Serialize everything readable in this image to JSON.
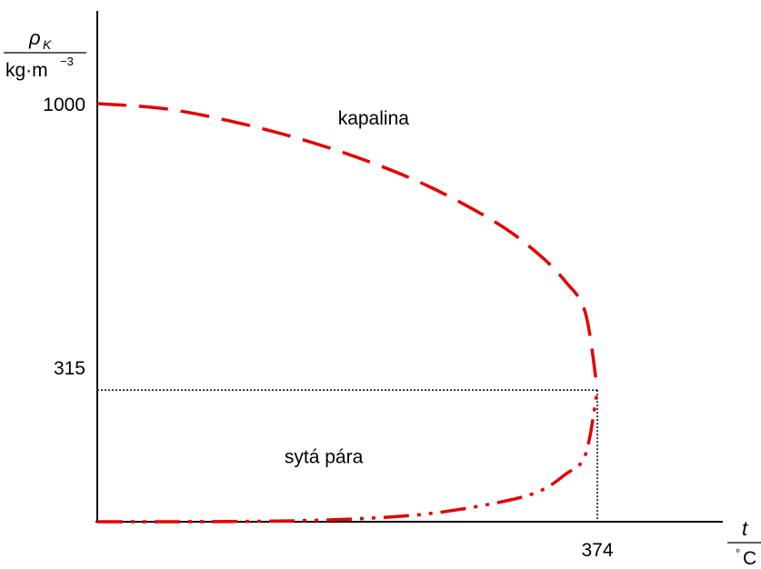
{
  "chart_data": {
    "type": "line",
    "ylabel": {
      "symbol": "ρ",
      "subscript": "K",
      "unit_base": "kg·m",
      "unit_exponent": "−3"
    },
    "xlabel": {
      "symbol": "t",
      "unit_degree": "°",
      "unit": "C"
    },
    "xlim": [
      0,
      420
    ],
    "ylim": [
      0,
      1100
    ],
    "y_ticks": [
      {
        "value": 1000,
        "label": "1000"
      },
      {
        "value": 315,
        "label": "315"
      }
    ],
    "x_ticks": [
      {
        "value": 374,
        "label": "374"
      }
    ],
    "critical_point": {
      "x": 374,
      "y": 315
    },
    "series": [
      {
        "name": "kapalina",
        "color": "#e60000",
        "style": "dashed",
        "x": [
          0,
          50,
          100,
          150,
          200,
          250,
          300,
          330,
          350,
          365,
          374
        ],
        "y": [
          1000,
          988,
          958,
          917,
          865,
          799,
          712,
          640,
          575,
          500,
          315
        ]
      },
      {
        "name": "sytá pára",
        "color": "#e60000",
        "style": "dash-dot-dot",
        "x": [
          0,
          50,
          100,
          150,
          200,
          250,
          300,
          330,
          350,
          365,
          374
        ],
        "y": [
          0,
          0.1,
          0.6,
          2.5,
          7.9,
          20,
          46,
          72,
          113,
          160,
          315
        ]
      }
    ],
    "annotations": [
      {
        "text": "kapalina",
        "x": 180,
        "y": 950
      },
      {
        "text": "sytá pára",
        "x": 140,
        "y": 140
      }
    ],
    "grid": false
  }
}
